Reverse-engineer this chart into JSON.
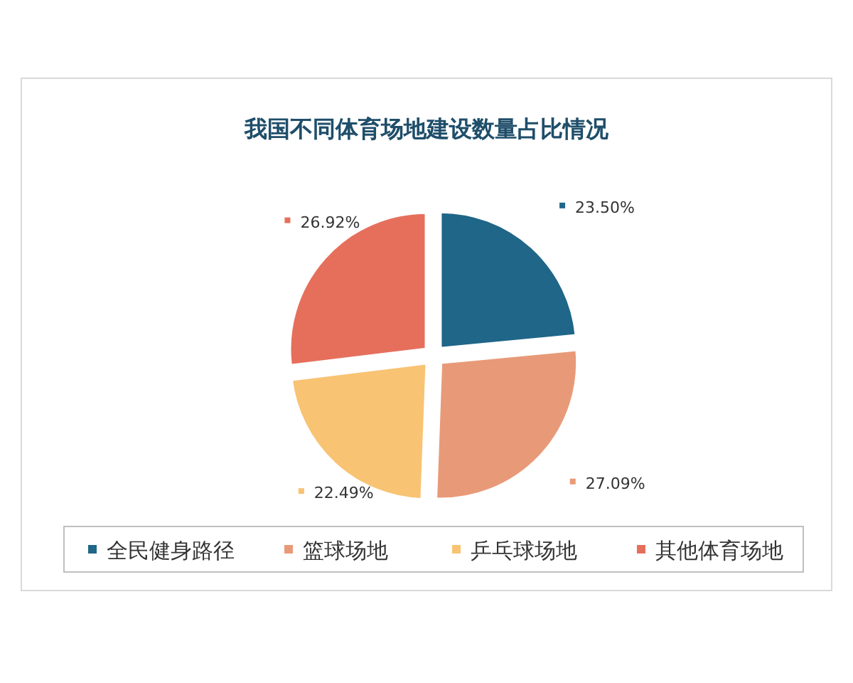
{
  "chart_data": {
    "type": "pie",
    "title": "我国不同体育场地建设数量占比情况",
    "categories": [
      "全民健身路径",
      "篮球场地",
      "乒乓球场地",
      "其他体育场地"
    ],
    "values": [
      23.5,
      27.09,
      22.49,
      26.92
    ],
    "value_labels": [
      "23.50%",
      "27.09%",
      "22.49%",
      "26.92%"
    ],
    "colors": [
      "#1f6688",
      "#e89a78",
      "#f8c373",
      "#e66f5c"
    ],
    "legend": "bottom"
  }
}
